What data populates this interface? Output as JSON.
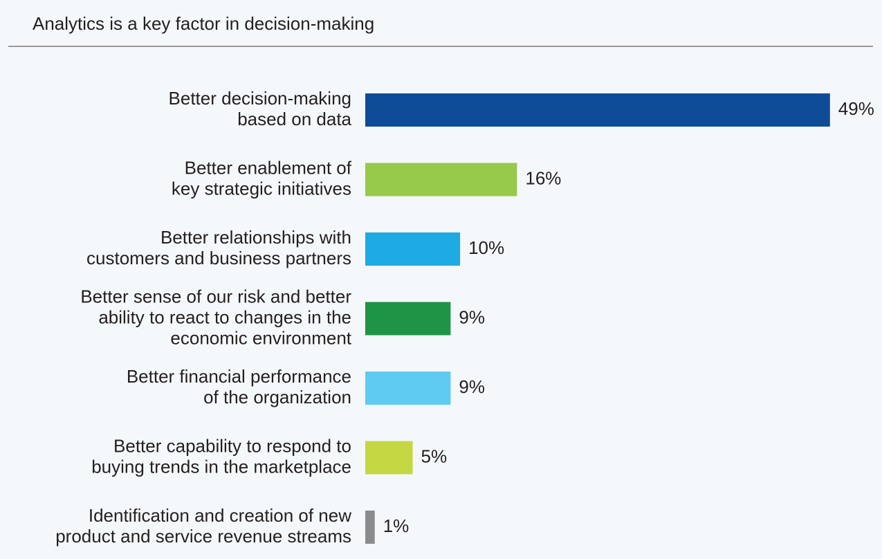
{
  "chart_data": {
    "type": "bar",
    "orientation": "horizontal",
    "title": "Analytics is a key factor in decision-making",
    "categories": [
      [
        "Better decision-making",
        "based on data"
      ],
      [
        "Better enablement of",
        "key strategic initiatives"
      ],
      [
        "Better relationships with",
        "customers and business partners"
      ],
      [
        "Better sense of our risk and better",
        "ability to react to changes in the",
        "economic environment"
      ],
      [
        "Better financial performance",
        "of the organization"
      ],
      [
        "Better capability to respond to",
        "buying trends in the marketplace"
      ],
      [
        "Identification and creation of new",
        "product and service revenue streams"
      ]
    ],
    "values": [
      49,
      16,
      10,
      9,
      9,
      5,
      1
    ],
    "value_labels": [
      "49%",
      "16%",
      "10%",
      "9%",
      "9%",
      "5%",
      "1%"
    ],
    "colors": [
      "#0f4c97",
      "#97c94a",
      "#1eaae2",
      "#1e9447",
      "#5fcbf1",
      "#c3d843",
      "#8a8b8d"
    ]
  }
}
